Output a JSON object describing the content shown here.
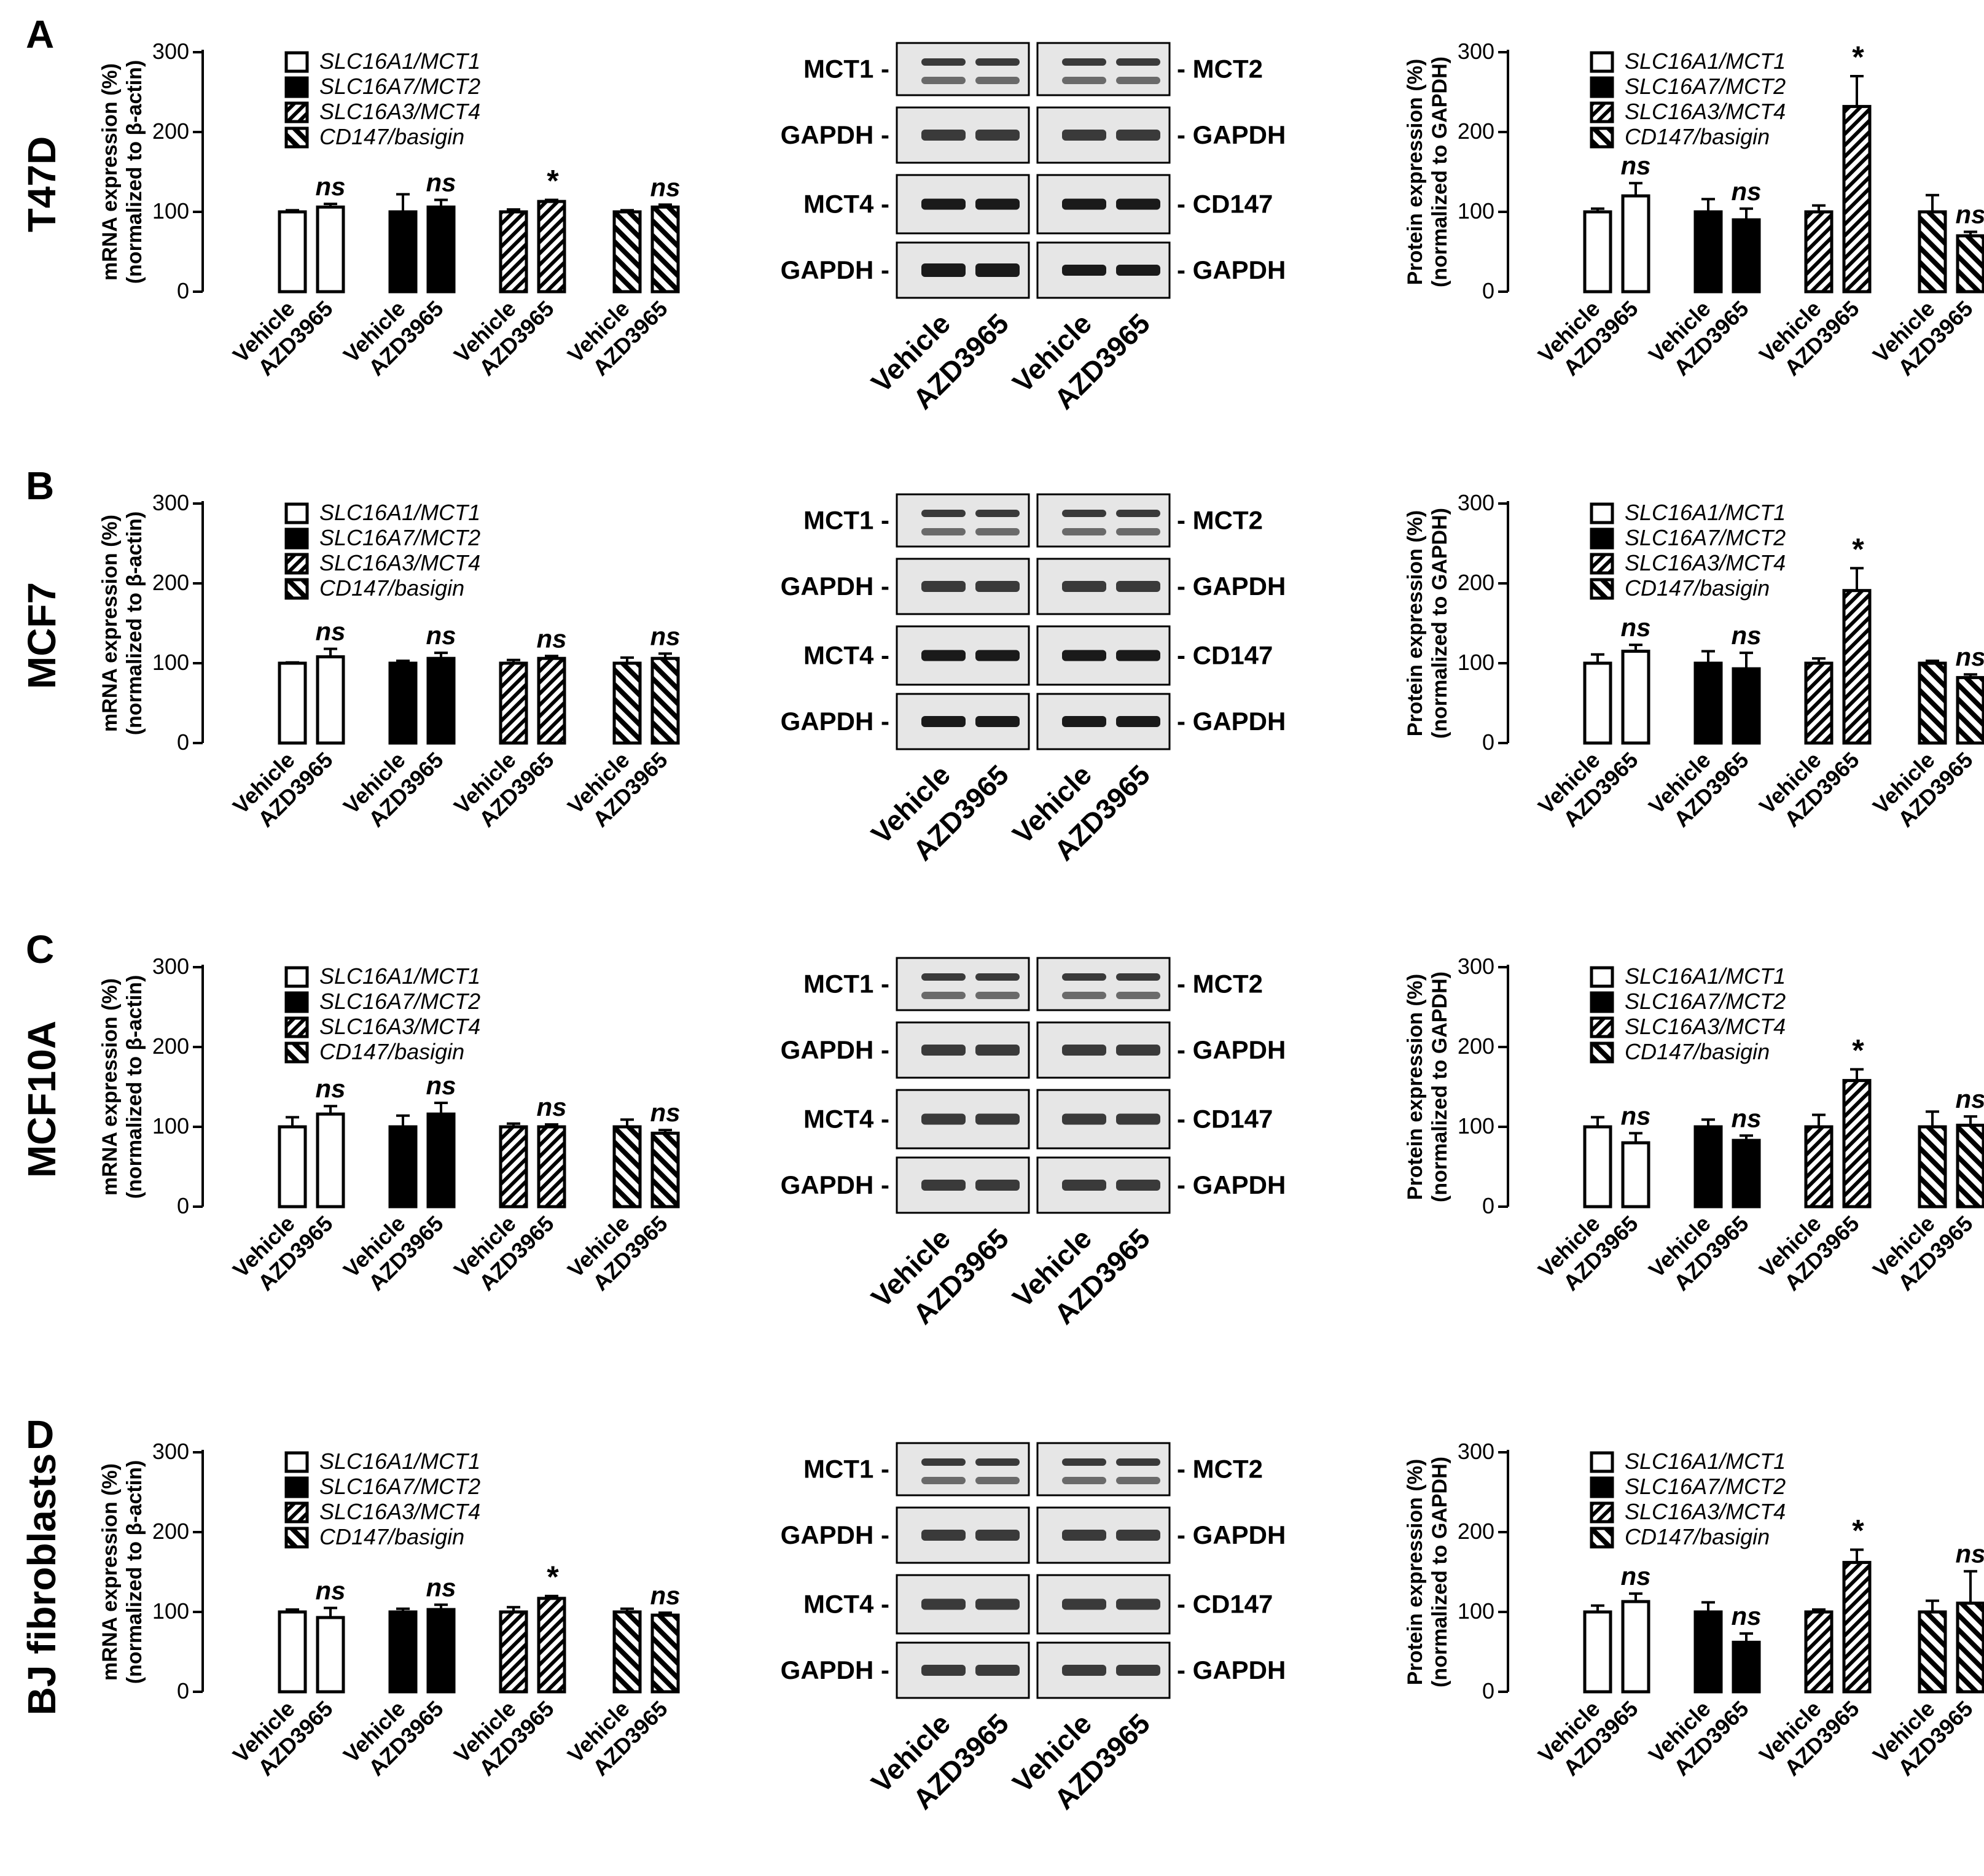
{
  "figure": {
    "legend_labels": [
      "SLC16A1/MCT1",
      "SLC16A7/MCT2",
      "SLC16A3/MCT4",
      "CD147/basigin"
    ],
    "mrna_ylabel_line1": "mRNA expression (%)",
    "mrna_ylabel_line2": "(normalized to β-actin)",
    "protein_ylabel_line1": "Protein expression (%)",
    "protein_ylabel_line2": "(normalized to GAPDH)",
    "y_ticks": [
      "0",
      "100",
      "200",
      "300"
    ],
    "x_tick_labels": [
      "Vehicle",
      "AZD3965"
    ],
    "blot_lane_labels": [
      "Vehicle",
      "AZD3965",
      "Vehicle",
      "AZD3965"
    ],
    "blot_left_labels": [
      "MCT1",
      "GAPDH",
      "MCT4",
      "GAPDH"
    ],
    "blot_right_labels": [
      "MCT2",
      "GAPDH",
      "CD147",
      "GAPDH"
    ],
    "colors": {
      "ink": "#000000",
      "blot_bg": "#e6e6e6",
      "band": "#2a2a2a"
    }
  },
  "chart_data": [
    {
      "panel": "A",
      "cell_line": "T47D",
      "assay": "mRNA",
      "type": "bar",
      "categories": [
        "SLC16A1/MCT1",
        "SLC16A7/MCT2",
        "SLC16A3/MCT4",
        "CD147/basigin"
      ],
      "series": [
        {
          "name": "Vehicle",
          "values": [
            100,
            100,
            100,
            100
          ],
          "errors": [
            2,
            22,
            3,
            2
          ]
        },
        {
          "name": "AZD3965",
          "values": [
            106,
            106,
            113,
            106
          ],
          "errors": [
            4,
            9,
            2,
            3
          ]
        }
      ],
      "significance": [
        "ns",
        "ns",
        "*",
        "ns"
      ],
      "ylim": [
        0,
        300
      ]
    },
    {
      "panel": "A",
      "cell_line": "T47D",
      "assay": "protein",
      "type": "bar",
      "categories": [
        "SLC16A1/MCT1",
        "SLC16A7/MCT2",
        "SLC16A3/MCT4",
        "CD147/basigin"
      ],
      "series": [
        {
          "name": "Vehicle",
          "values": [
            100,
            100,
            100,
            100
          ],
          "errors": [
            4,
            16,
            8,
            21
          ]
        },
        {
          "name": "AZD3965",
          "values": [
            120,
            90,
            232,
            70
          ],
          "errors": [
            16,
            14,
            38,
            5
          ]
        }
      ],
      "significance": [
        "ns",
        "ns",
        "*",
        "ns"
      ],
      "ylim": [
        0,
        300
      ]
    },
    {
      "panel": "B",
      "cell_line": "MCF7",
      "assay": "mRNA",
      "type": "bar",
      "categories": [
        "SLC16A1/MCT1",
        "SLC16A7/MCT2",
        "SLC16A3/MCT4",
        "CD147/basigin"
      ],
      "series": [
        {
          "name": "Vehicle",
          "values": [
            100,
            100,
            100,
            100
          ],
          "errors": [
            1,
            3,
            4,
            7
          ]
        },
        {
          "name": "AZD3965",
          "values": [
            108,
            106,
            106,
            106
          ],
          "errors": [
            10,
            7,
            3,
            6
          ]
        }
      ],
      "significance": [
        "ns",
        "ns",
        "ns",
        "ns"
      ],
      "ylim": [
        0,
        300
      ]
    },
    {
      "panel": "B",
      "cell_line": "MCF7",
      "assay": "protein",
      "type": "bar",
      "categories": [
        "SLC16A1/MCT1",
        "SLC16A7/MCT2",
        "SLC16A3/MCT4",
        "CD147/basigin"
      ],
      "series": [
        {
          "name": "Vehicle",
          "values": [
            100,
            100,
            100,
            100
          ],
          "errors": [
            11,
            15,
            6,
            3
          ]
        },
        {
          "name": "AZD3965",
          "values": [
            115,
            93,
            191,
            82
          ],
          "errors": [
            8,
            20,
            28,
            4
          ]
        }
      ],
      "significance": [
        "ns",
        "ns",
        "*",
        "ns"
      ],
      "ylim": [
        0,
        300
      ]
    },
    {
      "panel": "C",
      "cell_line": "MCF10A",
      "assay": "mRNA",
      "type": "bar",
      "categories": [
        "SLC16A1/MCT1",
        "SLC16A7/MCT2",
        "SLC16A3/MCT4",
        "CD147/basigin"
      ],
      "series": [
        {
          "name": "Vehicle",
          "values": [
            100,
            100,
            100,
            100
          ],
          "errors": [
            12,
            14,
            4,
            9
          ]
        },
        {
          "name": "AZD3965",
          "values": [
            116,
            116,
            100,
            92
          ],
          "errors": [
            10,
            14,
            3,
            4
          ]
        }
      ],
      "significance": [
        "ns",
        "ns",
        "ns",
        "ns"
      ],
      "ylim": [
        0,
        300
      ]
    },
    {
      "panel": "C",
      "cell_line": "MCF10A",
      "assay": "protein",
      "type": "bar",
      "categories": [
        "SLC16A1/MCT1",
        "SLC16A7/MCT2",
        "SLC16A3/MCT4",
        "CD147/basigin"
      ],
      "series": [
        {
          "name": "Vehicle",
          "values": [
            100,
            100,
            100,
            100
          ],
          "errors": [
            12,
            9,
            15,
            19
          ]
        },
        {
          "name": "AZD3965",
          "values": [
            80,
            83,
            158,
            102
          ],
          "errors": [
            12,
            6,
            14,
            11
          ]
        }
      ],
      "significance": [
        "ns",
        "ns",
        "*",
        "ns"
      ],
      "ylim": [
        0,
        300
      ]
    },
    {
      "panel": "D",
      "cell_line": "BJ fibroblasts",
      "assay": "mRNA",
      "type": "bar",
      "categories": [
        "SLC16A1/MCT1",
        "SLC16A7/MCT2",
        "SLC16A3/MCT4",
        "CD147/basigin"
      ],
      "series": [
        {
          "name": "Vehicle",
          "values": [
            100,
            100,
            100,
            100
          ],
          "errors": [
            3,
            4,
            6,
            4
          ]
        },
        {
          "name": "AZD3965",
          "values": [
            93,
            103,
            117,
            96
          ],
          "errors": [
            12,
            6,
            3,
            3
          ]
        }
      ],
      "significance": [
        "ns",
        "ns",
        "*",
        "ns"
      ],
      "ylim": [
        0,
        300
      ]
    },
    {
      "panel": "D",
      "cell_line": "BJ fibroblasts",
      "assay": "protein",
      "type": "bar",
      "categories": [
        "SLC16A1/MCT1",
        "SLC16A7/MCT2",
        "SLC16A3/MCT4",
        "CD147/basigin"
      ],
      "series": [
        {
          "name": "Vehicle",
          "values": [
            100,
            100,
            100,
            100
          ],
          "errors": [
            8,
            12,
            3,
            14
          ]
        },
        {
          "name": "AZD3965",
          "values": [
            113,
            62,
            162,
            111
          ],
          "errors": [
            10,
            11,
            16,
            40
          ]
        }
      ],
      "significance": [
        "ns",
        "ns",
        "*",
        "ns"
      ],
      "ylim": [
        0,
        300
      ]
    }
  ]
}
